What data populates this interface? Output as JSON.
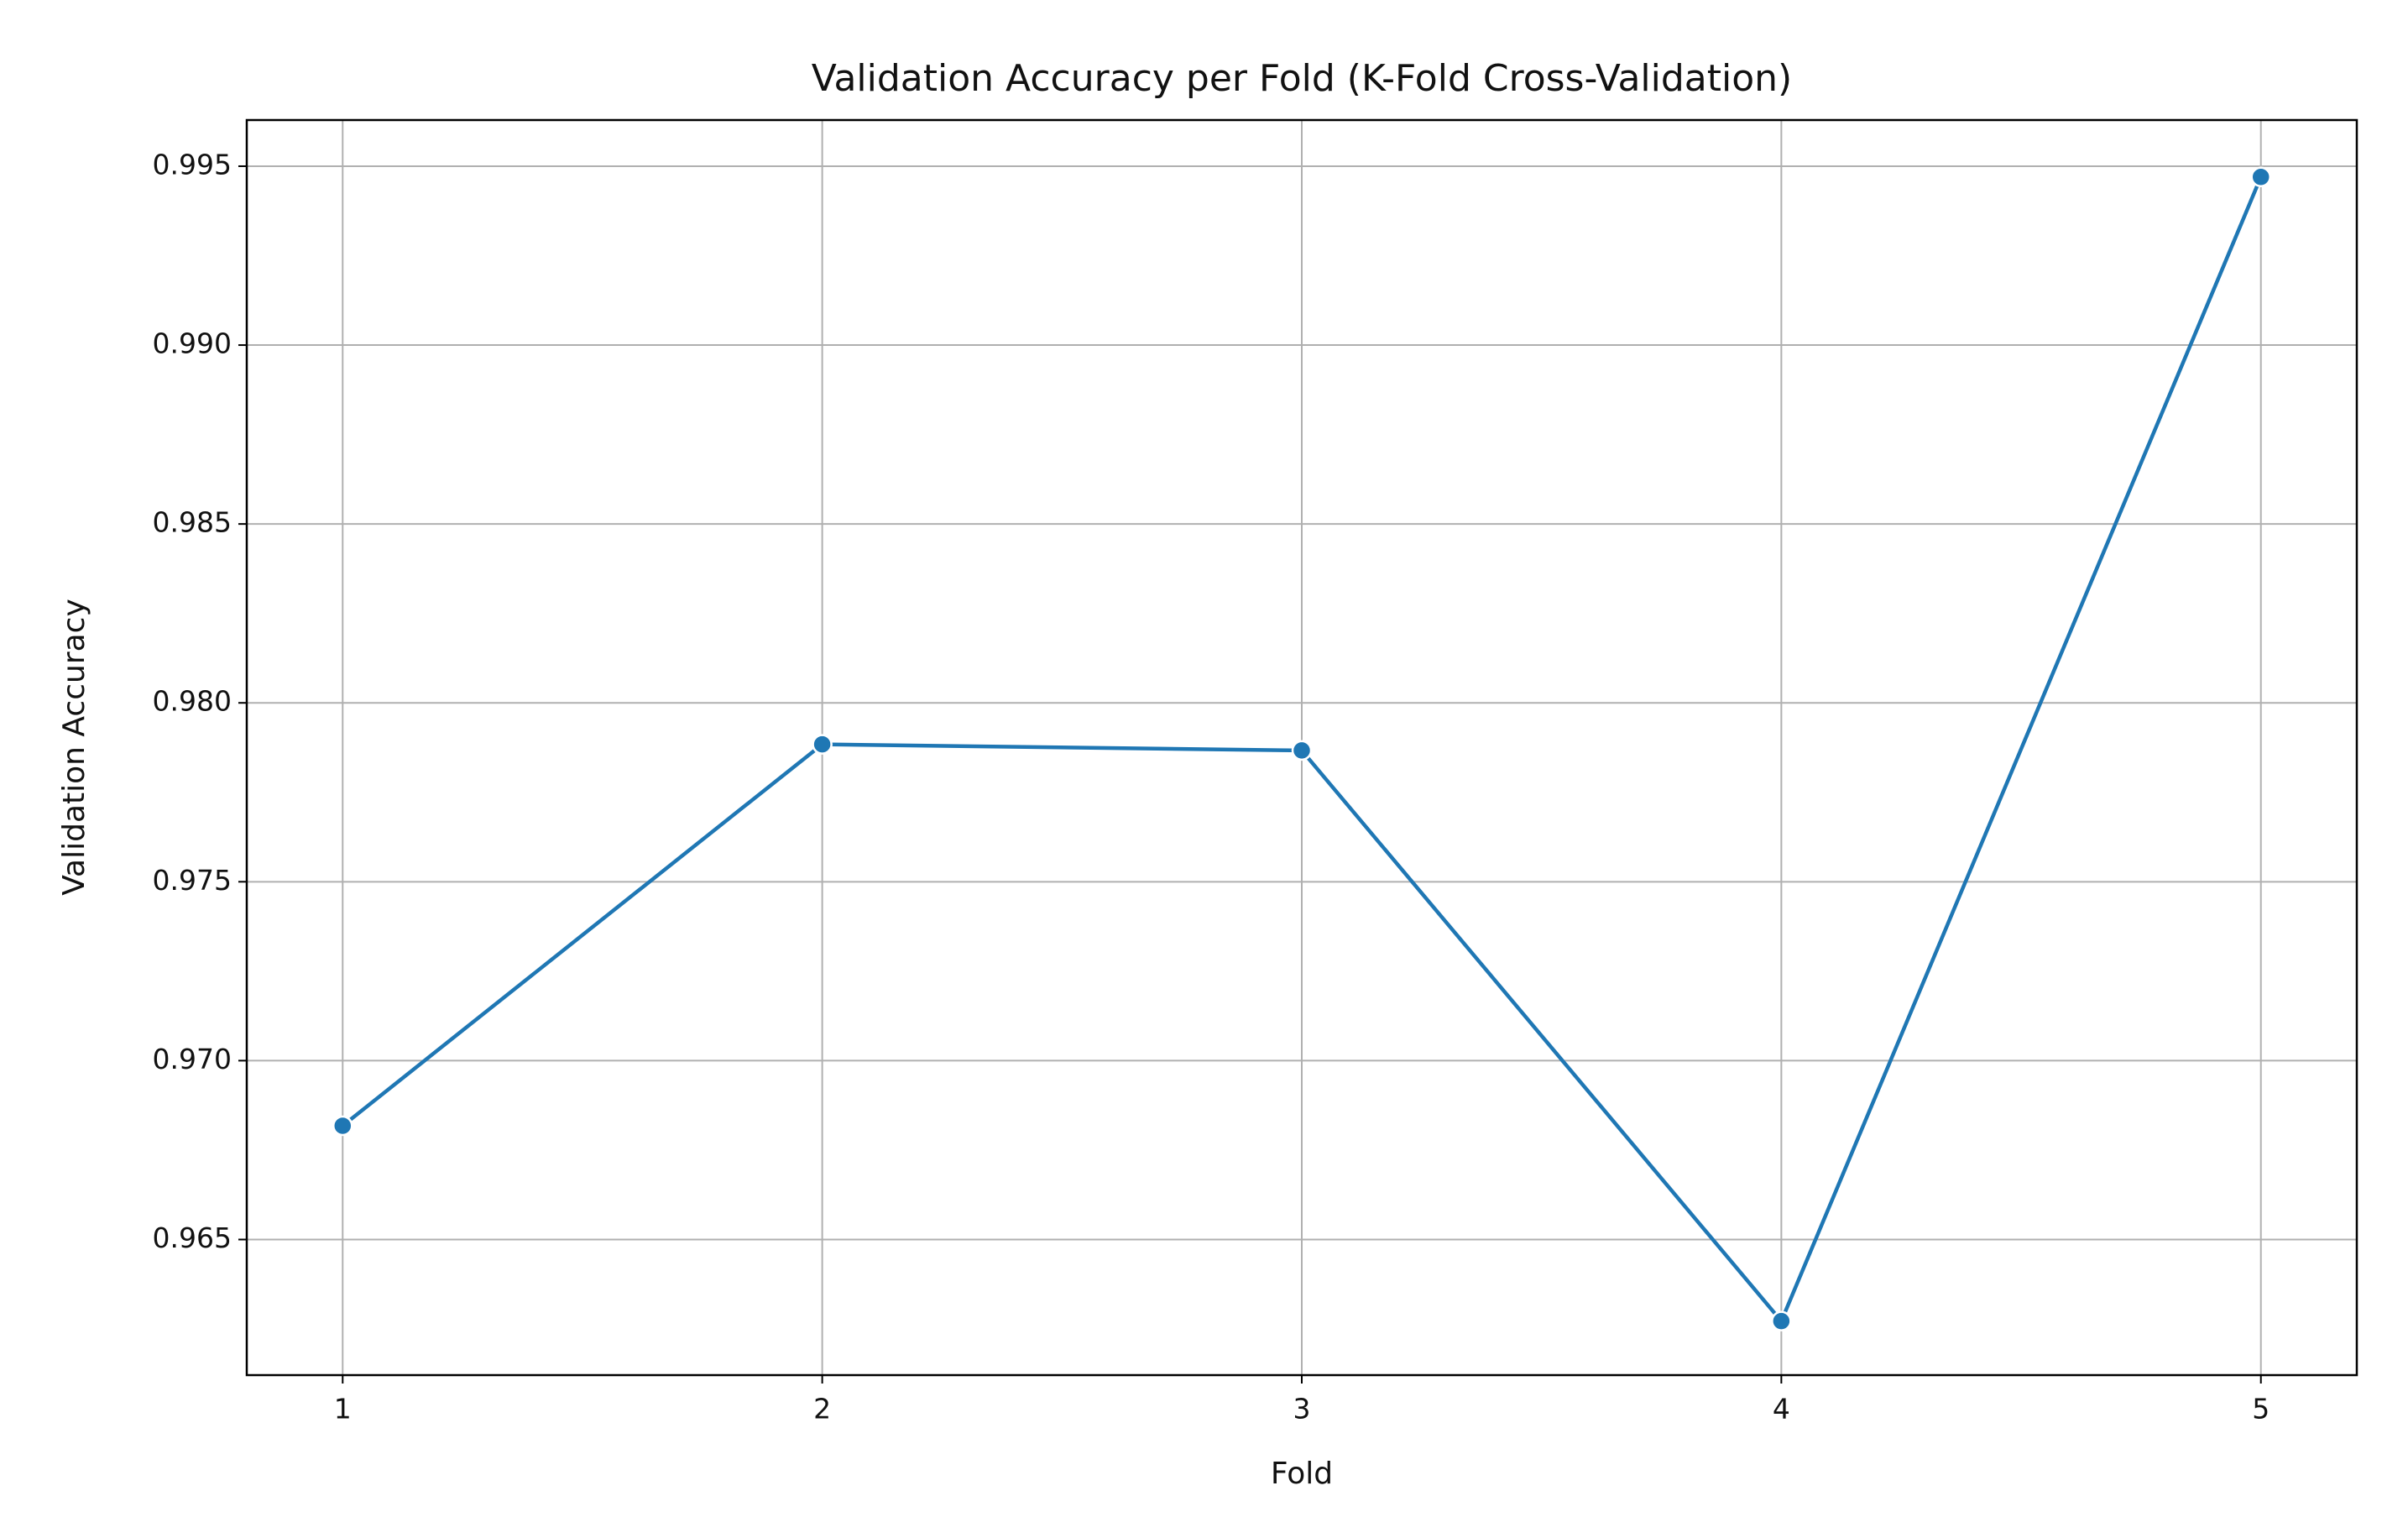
{
  "chart_data": {
    "type": "line",
    "title": "Validation Accuracy per Fold (K-Fold Cross-Validation)",
    "x_label": "Fold",
    "y_label": "Validation Accuracy",
    "x": [
      1,
      2,
      3,
      4,
      5
    ],
    "series": [
      {
        "name": "Validation Accuracy",
        "color": "#1f77b4",
        "values": [
          0.96818,
          0.97884,
          0.97867,
          0.96272,
          0.9947
        ]
      }
    ],
    "xlim": [
      0.8,
      5.2
    ],
    "xticks": [
      1,
      2,
      3,
      4,
      5
    ],
    "ylim": [
      0.96121,
      0.99629
    ],
    "yticks": [
      0.965,
      {
        "value": 0.97,
        "label": "0.970"
      },
      0.975,
      {
        "value": 0.98,
        "label": "0.980"
      },
      0.985,
      {
        "value": 0.99,
        "label": "0.990"
      },
      0.995
    ],
    "grid": true,
    "marker": true
  }
}
